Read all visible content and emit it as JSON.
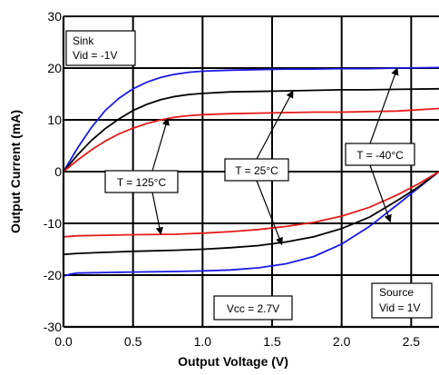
{
  "chart_data": {
    "type": "line",
    "title": "",
    "xlabel": "Output Voltage (V)",
    "ylabel": "Output Current (mA)",
    "xlim": [
      0,
      2.7
    ],
    "ylim": [
      -30,
      30
    ],
    "x_ticks": [
      0,
      0.5,
      1.0,
      1.5,
      2.0,
      2.5
    ],
    "x_tick_labels": [
      "0.0",
      "0.5",
      "1.0",
      "1.5",
      "2.0",
      "2.5"
    ],
    "y_ticks": [
      -30,
      -20,
      -10,
      0,
      10,
      20,
      30
    ],
    "y_tick_labels": [
      "-30",
      "-20",
      "-10",
      "0",
      "10",
      "20",
      "30"
    ],
    "grid": true,
    "series": [
      {
        "temp": "-40",
        "mode": "sink",
        "color": "#1a1ae6",
        "x": [
          0,
          0.1,
          0.2,
          0.3,
          0.4,
          0.5,
          0.6,
          0.7,
          0.8,
          0.9,
          1.0,
          1.2,
          1.4,
          1.6,
          1.8,
          2.0,
          2.2,
          2.4,
          2.7
        ],
        "y": [
          0,
          4.5,
          8.5,
          11.8,
          14.2,
          16.0,
          17.3,
          18.2,
          18.8,
          19.2,
          19.4,
          19.6,
          19.7,
          19.8,
          19.8,
          19.9,
          19.9,
          20.0,
          20.1
        ]
      },
      {
        "temp": "25",
        "mode": "sink",
        "color": "#000000",
        "x": [
          0,
          0.1,
          0.2,
          0.3,
          0.4,
          0.5,
          0.6,
          0.7,
          0.8,
          0.9,
          1.0,
          1.2,
          1.4,
          1.6,
          1.8,
          2.0,
          2.2,
          2.4,
          2.7
        ],
        "y": [
          0,
          3.2,
          6.0,
          8.3,
          10.2,
          11.8,
          13.0,
          13.9,
          14.5,
          14.9,
          15.1,
          15.4,
          15.5,
          15.6,
          15.7,
          15.8,
          15.8,
          15.9,
          16.0
        ]
      },
      {
        "temp": "125",
        "mode": "sink",
        "color": "#e61a1a",
        "x": [
          0,
          0.1,
          0.2,
          0.3,
          0.4,
          0.5,
          0.6,
          0.7,
          0.8,
          0.9,
          1.0,
          1.2,
          1.4,
          1.6,
          1.8,
          2.0,
          2.2,
          2.4,
          2.7
        ],
        "y": [
          0,
          2.2,
          4.2,
          5.9,
          7.3,
          8.4,
          9.3,
          10.0,
          10.5,
          10.8,
          11.0,
          11.2,
          11.3,
          11.4,
          11.5,
          11.5,
          11.6,
          11.7,
          12.2
        ]
      },
      {
        "temp": "-40",
        "mode": "source",
        "color": "#1a1ae6",
        "x": [
          0,
          0.05,
          0.1,
          0.3,
          0.5,
          0.8,
          1.0,
          1.2,
          1.4,
          1.6,
          1.8,
          2.0,
          2.2,
          2.4,
          2.55,
          2.7
        ],
        "y": [
          -20.2,
          -19.8,
          -19.6,
          -19.5,
          -19.4,
          -19.3,
          -19.2,
          -19.0,
          -18.6,
          -17.8,
          -16.4,
          -14.0,
          -10.6,
          -6.4,
          -3.2,
          0
        ]
      },
      {
        "temp": "25",
        "mode": "source",
        "color": "#000000",
        "x": [
          0,
          0.1,
          0.3,
          0.5,
          0.8,
          1.0,
          1.2,
          1.4,
          1.6,
          1.8,
          2.0,
          2.2,
          2.4,
          2.55,
          2.7
        ],
        "y": [
          -16.0,
          -15.8,
          -15.6,
          -15.4,
          -15.2,
          -15.0,
          -14.7,
          -14.3,
          -13.6,
          -12.6,
          -11.0,
          -8.8,
          -5.6,
          -3.0,
          0
        ]
      },
      {
        "temp": "125",
        "mode": "source",
        "color": "#e61a1a",
        "x": [
          0,
          0.1,
          0.3,
          0.5,
          0.8,
          1.0,
          1.2,
          1.4,
          1.6,
          1.8,
          2.0,
          2.2,
          2.4,
          2.55,
          2.7
        ],
        "y": [
          -12.6,
          -12.4,
          -12.3,
          -12.2,
          -12.1,
          -11.9,
          -11.6,
          -11.2,
          -10.6,
          -9.8,
          -8.6,
          -6.9,
          -4.5,
          -2.4,
          0
        ]
      }
    ],
    "annotations": {
      "sink_box": {
        "line1": "Sink",
        "line2": "Vid = -1V",
        "position": "top-left"
      },
      "source_box": {
        "line1": "Source",
        "line2": "Vid = 1V",
        "position": "bottom-right"
      },
      "vcc_box": {
        "text": "Vcc = 2.7V",
        "position": "bottom-center"
      },
      "temp_labels": [
        {
          "text": "T = 125°C",
          "color": "#000000"
        },
        {
          "text": "T = 25°C",
          "color": "#000000"
        },
        {
          "text": "T = -40°C",
          "color": "#000000"
        }
      ]
    }
  }
}
